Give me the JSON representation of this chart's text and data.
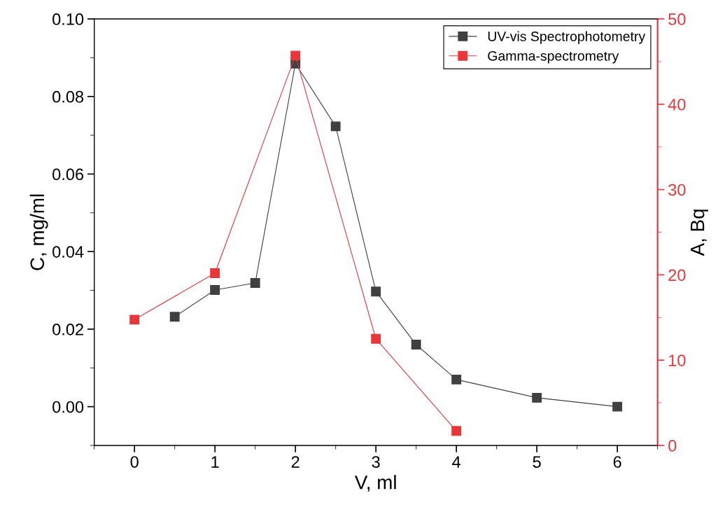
{
  "chart_data": {
    "type": "line",
    "xlabel": "V, ml",
    "ylabel": "C, mg/ml",
    "y2label": "A, Bq",
    "xlim": [
      -0.5,
      6.5
    ],
    "xticks": [
      0,
      1,
      2,
      3,
      4,
      5,
      6
    ],
    "ylim": [
      -0.01,
      0.1
    ],
    "yticks": [
      {
        "value": 0,
        "label": "0.00"
      },
      {
        "value": 0.02,
        "label": "0.02"
      },
      {
        "value": 0.04,
        "label": "0.04"
      },
      {
        "value": 0.06,
        "label": "0.06"
      },
      {
        "value": 0.08,
        "label": "0.08"
      },
      {
        "value": 0.1,
        "label": "0.10"
      }
    ],
    "y2lim": [
      0,
      50
    ],
    "y2ticks": [
      0,
      10,
      20,
      30,
      40,
      50
    ],
    "marker": "square",
    "line_style": "solid",
    "grid": false,
    "legend": "top right",
    "series": [
      {
        "name": "UV-vis Spectrophotometry",
        "color": "#404040",
        "x": [
          0.5,
          1,
          1.5,
          2,
          2.5,
          3,
          3.5,
          4,
          5,
          6
        ],
        "values": [
          0.0232,
          0.0301,
          0.0319,
          0.0885,
          0.0723,
          0.0297,
          0.016,
          0.007,
          0.0023,
          0.0
        ]
      },
      {
        "name": "Gamma-spectrometry",
        "color": "#e8373a",
        "axis": "y2",
        "x": [
          0,
          1,
          2,
          3,
          4
        ],
        "values": [
          14.75,
          20.2,
          45.7,
          12.5,
          1.7
        ]
      }
    ]
  }
}
